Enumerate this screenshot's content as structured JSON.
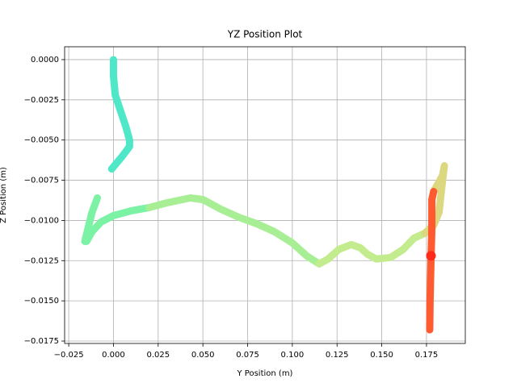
{
  "chart_data": {
    "type": "line",
    "title": "YZ Position Plot",
    "x_label": "Y Position (m)",
    "y_label": "Z Position (m)",
    "xlim": [
      -0.0273,
      0.1967
    ],
    "ylim": [
      -0.01765,
      0.0008
    ],
    "grid": true,
    "xticks": [
      {
        "value": -0.025,
        "label": "−0.025"
      },
      {
        "value": 0,
        "label": "0.000"
      },
      0.025,
      {
        "value": 0.05,
        "label": "0.050"
      },
      0.075,
      {
        "value": 0.1,
        "label": "0.100"
      },
      0.125,
      {
        "value": 0.15,
        "label": "0.150"
      },
      0.175
    ],
    "yticks": [
      {
        "value": 0,
        "label": "0.0000"
      },
      {
        "value": -0.0025,
        "label": "−0.0025"
      },
      {
        "value": -0.005,
        "label": "−0.0050"
      },
      {
        "value": -0.0075,
        "label": "−0.0075"
      },
      {
        "value": -0.01,
        "label": "−0.0100"
      },
      {
        "value": -0.0125,
        "label": "−0.0125"
      },
      {
        "value": -0.015,
        "label": "−0.0150"
      },
      {
        "value": -0.0175,
        "label": "−0.0175"
      }
    ],
    "series": [
      {
        "color": "#4ee8c9",
        "x": [
          0,
          0,
          0.001,
          0.004,
          0.007,
          0.009,
          0.009,
          0.005,
          0.002,
          -0.001
        ],
        "values": [
          0,
          -0.001,
          -0.0022,
          -0.0032,
          -0.0042,
          -0.005,
          -0.0054,
          -0.006,
          -0.0064,
          -0.0068
        ]
      },
      {
        "color": "#7cf2a4",
        "x": [
          -0.009,
          -0.012,
          -0.014,
          -0.016,
          -0.015,
          -0.012,
          -0.007,
          0,
          0.01,
          0.02
        ],
        "values": [
          -0.0086,
          -0.0095,
          -0.0104,
          -0.0113,
          -0.0113,
          -0.0107,
          -0.0101,
          -0.0097,
          -0.0094,
          -0.0092
        ]
      },
      {
        "color": "#a8ee95",
        "x": [
          0.02,
          0.03,
          0.043,
          0.05,
          0.06,
          0.07,
          0.08,
          0.09,
          0.1,
          0.108,
          0.115
        ],
        "values": [
          -0.0092,
          -0.0089,
          -0.0086,
          -0.0087,
          -0.0093,
          -0.0098,
          -0.0102,
          -0.0107,
          -0.0114,
          -0.0122,
          -0.0127
        ]
      },
      {
        "color": "#c2ec8e",
        "x": [
          0.115,
          0.12,
          0.126,
          0.133,
          0.138,
          0.142,
          0.147,
          0.155,
          0.162,
          0.168,
          0.174
        ],
        "values": [
          -0.0127,
          -0.0124,
          -0.0118,
          -0.0115,
          -0.0117,
          -0.0121,
          -0.0124,
          -0.0123,
          -0.0118,
          -0.0111,
          -0.0108
        ]
      },
      {
        "color": "#dcd880",
        "x": [
          0.174,
          0.179,
          0.182,
          0.183,
          0.184,
          0.185,
          0.184,
          0.181,
          0.179
        ],
        "values": [
          -0.0108,
          -0.0103,
          -0.0095,
          -0.0085,
          -0.0075,
          -0.0066,
          -0.0072,
          -0.0078,
          -0.0082
        ]
      },
      {
        "color": "#ff5a30",
        "x": [
          0.179,
          0.178,
          0.178,
          0.1775,
          0.177,
          0.1768
        ],
        "values": [
          -0.0082,
          -0.0087,
          -0.0105,
          -0.0125,
          -0.015,
          -0.0168
        ]
      },
      {
        "color": "#ff2a1a",
        "x": [
          0.1775
        ],
        "values": [
          -0.0122
        ]
      }
    ]
  }
}
